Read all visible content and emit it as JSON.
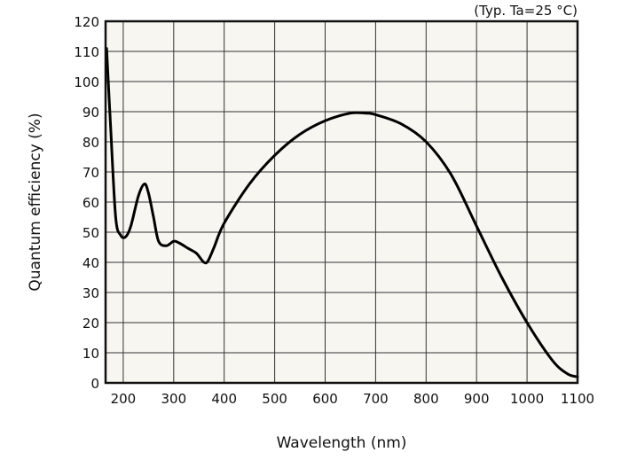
{
  "chart_data": {
    "type": "line",
    "title": "",
    "annotation": "(Typ. Ta=25 °C)",
    "xlabel": "Wavelength (nm)",
    "ylabel": "Quantum efficiency (%)",
    "xlim": [
      165,
      1100
    ],
    "ylim": [
      0,
      120
    ],
    "xticks": [
      200,
      300,
      400,
      500,
      600,
      700,
      800,
      900,
      1000,
      1100
    ],
    "yticks": [
      0,
      10,
      20,
      30,
      40,
      50,
      60,
      70,
      80,
      90,
      100,
      110,
      120
    ],
    "grid": true,
    "colors": {
      "background": "#f7f6f0",
      "line": "#000000",
      "grid": "#333333"
    },
    "series": [
      {
        "name": "Quantum efficiency",
        "x": [
          167,
          175,
          185,
          195,
          205,
          215,
          230,
          242,
          250,
          260,
          270,
          285,
          300,
          310,
          330,
          345,
          360,
          368,
          380,
          400,
          450,
          500,
          550,
          600,
          650,
          680,
          700,
          750,
          800,
          850,
          900,
          950,
          1000,
          1050,
          1080,
          1100
        ],
        "y": [
          111,
          85,
          55,
          49,
          48.5,
          52,
          62,
          66,
          63,
          55,
          47,
          45.5,
          47,
          46.5,
          44.5,
          43,
          40,
          40.5,
          45,
          53,
          66,
          75.5,
          82.5,
          87,
          89.5,
          89.5,
          89,
          86,
          80,
          69,
          52,
          35,
          20,
          7.5,
          3,
          2
        ]
      }
    ]
  }
}
